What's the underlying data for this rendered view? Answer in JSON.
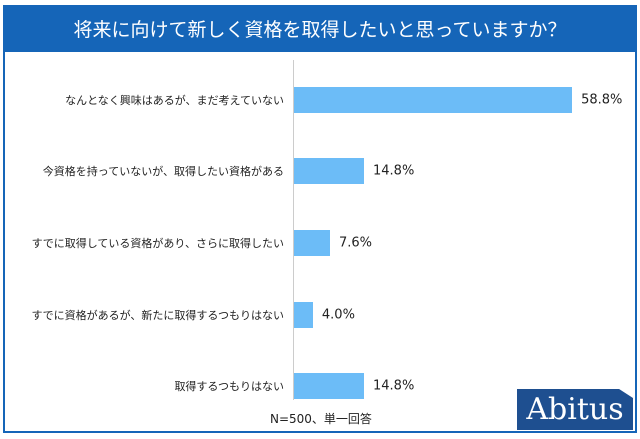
{
  "chart_data": {
    "type": "bar",
    "orientation": "horizontal",
    "title": "将来に向けて新しく資格を取得したいと思っていますか？",
    "categories": [
      "なんとなく興味はあるが、まだ考えていない",
      "今資格を持っていないが、取得したい資格がある",
      "すでに取得している資格があり、さらに取得したい",
      "すでに資格があるが、新たに取得するつもりはない",
      "取得するつもりはない"
    ],
    "values": [
      58.8,
      14.8,
      7.6,
      4.0,
      14.8
    ],
    "value_labels": [
      "58.8%",
      "14.8%",
      "7.6%",
      "4.0%",
      "14.8%"
    ],
    "unit": "%",
    "note": "N=500、単一回答",
    "bar_color": "#6cbcf7"
  },
  "logo": "Abitus"
}
